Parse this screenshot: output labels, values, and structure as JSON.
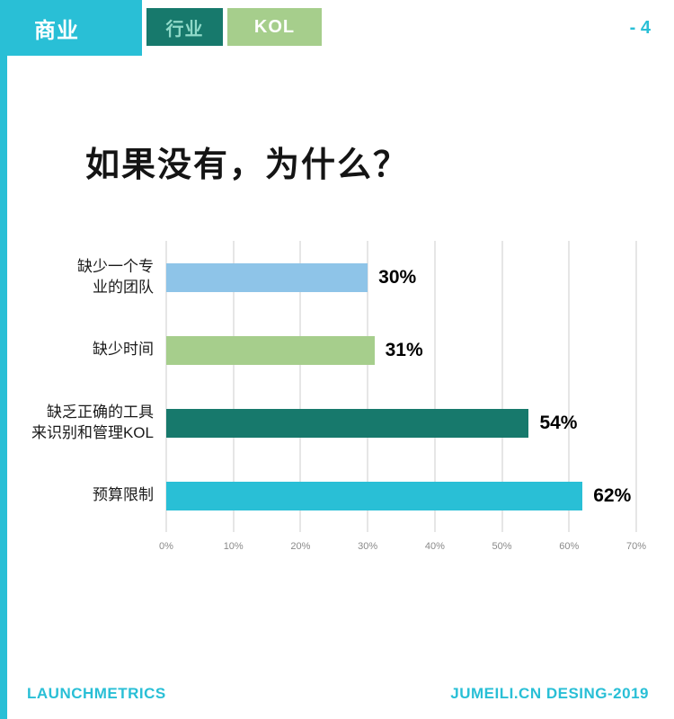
{
  "colors": {
    "cyan": "#29BFD6",
    "dark_teal": "#17796C",
    "light_green": "#A6CE8C",
    "light_blue": "#8EC4E8",
    "gridline": "#CCCCCC",
    "tick_text": "#8A8A8A"
  },
  "header": {
    "brand": "商业",
    "tabs": [
      {
        "label": "行业"
      },
      {
        "label": "KOL"
      }
    ],
    "page_number": "- 4"
  },
  "main": {
    "title": "如果没有，为什么？"
  },
  "chart_data": {
    "type": "bar",
    "orientation": "horizontal",
    "title": "如果没有，为什么？",
    "categories": [
      "缺少一个专业的团队",
      "缺少时间",
      "缺乏正确的工具来识别和管理KOL",
      "预算限制"
    ],
    "category_display": [
      "缺少一个专\n业的团队",
      "缺少时间",
      "缺乏正确的工具\n来识别和管理KOL",
      "预算限制"
    ],
    "values": [
      30,
      31,
      54,
      62
    ],
    "value_labels": [
      "30%",
      "31%",
      "54%",
      "62%"
    ],
    "bar_colors": [
      "#8EC4E8",
      "#A6CE8C",
      "#17796C",
      "#29BFD6"
    ],
    "x_ticks": [
      "0%",
      "10%",
      "20%",
      "30%",
      "40%",
      "50%",
      "60%",
      "70%"
    ],
    "xlim": [
      0,
      70
    ],
    "grid": true,
    "legend": false
  },
  "footer": {
    "left": "LAUNCHMETRICS",
    "right": "JUMEILI.CN DESING-2019"
  }
}
